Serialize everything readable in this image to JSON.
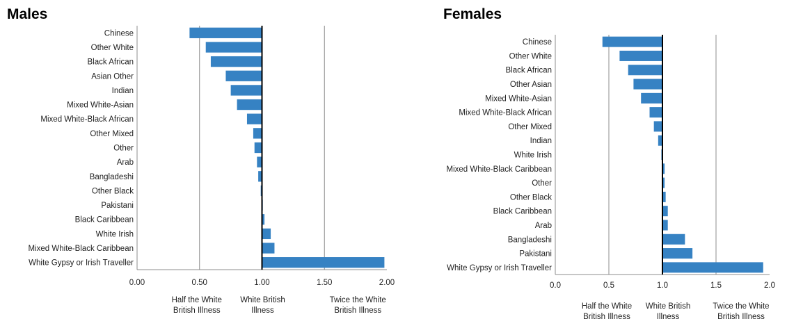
{
  "chart_data": [
    {
      "type": "bar",
      "orientation": "horizontal",
      "title": "Males",
      "categories": [
        "Chinese",
        "Other White",
        "Black African",
        "Asian Other",
        "Indian",
        "Mixed White-Asian",
        "Mixed White-Black African",
        "Other Mixed",
        "Other",
        "Arab",
        "Bangladeshi",
        "Other Black",
        "Pakistani",
        "Black Caribbean",
        "White Irish",
        "Mixed White-Black Caribbean",
        "White Gypsy or Irish Traveller"
      ],
      "values": [
        0.42,
        0.55,
        0.59,
        0.71,
        0.75,
        0.8,
        0.88,
        0.93,
        0.94,
        0.96,
        0.97,
        0.99,
        1.0,
        1.02,
        1.07,
        1.1,
        1.98
      ],
      "xlim": [
        0,
        2
      ],
      "ticks": [
        "0.00",
        "0.50",
        "1.00",
        "1.50",
        "2.00"
      ],
      "tick_values": [
        0,
        0.5,
        1.0,
        1.5,
        2.0
      ],
      "gridlines": [
        0.5,
        1.5
      ],
      "reference_line": 1.0,
      "annotations": [
        {
          "at": 0.5,
          "lines": [
            "Half the White",
            "British Illness"
          ]
        },
        {
          "at": 1.0,
          "lines": [
            "White British",
            "Illness"
          ]
        },
        {
          "at": 1.5,
          "lines": [
            "Twice the White",
            "British Illness"
          ]
        }
      ],
      "bar_color": "#3682c3"
    },
    {
      "type": "bar",
      "orientation": "horizontal",
      "title": "Females",
      "categories": [
        "Chinese",
        "Other White",
        "Black African",
        "Other Asian",
        "Mixed White-Asian",
        "Mixed White-Black African",
        "Other Mixed",
        "Indian",
        "White Irish",
        "Mixed White-Black Caribbean",
        "Other",
        "Other Black",
        "Black Caribbean",
        "Arab",
        "Bangladeshi",
        "Pakistani",
        "White Gypsy or Irish Traveller"
      ],
      "values": [
        0.44,
        0.6,
        0.68,
        0.73,
        0.8,
        0.88,
        0.92,
        0.96,
        0.99,
        1.02,
        1.02,
        1.03,
        1.05,
        1.05,
        1.21,
        1.28,
        1.94
      ],
      "xlim": [
        0,
        2
      ],
      "ticks": [
        "0.0",
        "0.5",
        "1.0",
        "1.5",
        "2.0"
      ],
      "tick_values": [
        0,
        0.5,
        1.0,
        1.5,
        2.0
      ],
      "gridlines": [
        0.5,
        1.5
      ],
      "reference_line": 1.0,
      "annotations": [
        {
          "at": 0.5,
          "lines": [
            "Half the White",
            "British Illness"
          ]
        },
        {
          "at": 1.0,
          "lines": [
            "White British",
            "Illness"
          ]
        },
        {
          "at": 1.5,
          "lines": [
            "Twice the White",
            "British Illness"
          ]
        }
      ],
      "bar_color": "#3682c3"
    }
  ]
}
